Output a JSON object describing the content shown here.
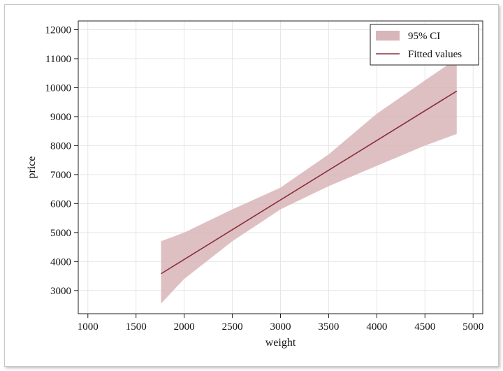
{
  "chart_data": {
    "type": "line",
    "xlabel": "weight",
    "ylabel": "price",
    "xlim": [
      900,
      5100
    ],
    "ylim": [
      2200,
      12300
    ],
    "x_ticks": [
      1000,
      1500,
      2000,
      2500,
      3000,
      3500,
      4000,
      4500,
      5000
    ],
    "y_ticks": [
      3000,
      4000,
      5000,
      6000,
      7000,
      8000,
      9000,
      10000,
      11000,
      12000
    ],
    "grid": true,
    "legend_position": "top-right",
    "series": [
      {
        "name": "95% CI",
        "kind": "band",
        "color": "#d8b5b9",
        "x": [
          1760,
          2000,
          2500,
          3000,
          3500,
          4000,
          4500,
          4830
        ],
        "lower": [
          2550,
          3400,
          4700,
          5800,
          6600,
          7300,
          8000,
          8400
        ],
        "upper": [
          4700,
          5000,
          5800,
          6550,
          7700,
          9100,
          10250,
          11000
        ]
      },
      {
        "name": "Fitted values",
        "kind": "line",
        "color": "#8b2e3a",
        "x": [
          1760,
          4830
        ],
        "y": [
          3580,
          9880
        ]
      }
    ]
  }
}
